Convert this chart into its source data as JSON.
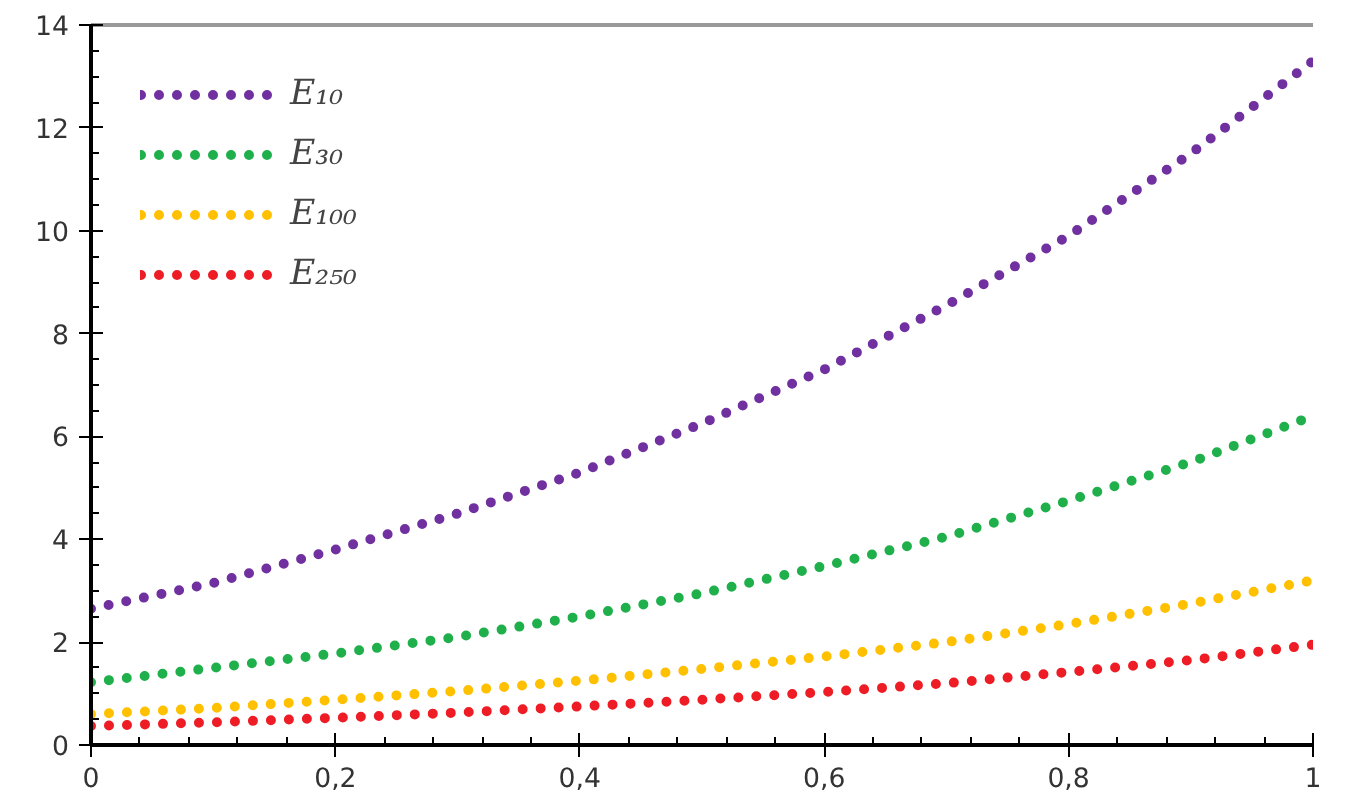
{
  "chart_data": {
    "type": "line",
    "x": [
      0,
      0.1,
      0.2,
      0.3,
      0.4,
      0.5,
      0.6,
      0.7,
      0.8,
      0.9,
      1
    ],
    "series": [
      {
        "name": "E₁₀",
        "color": "#7030a0",
        "values": [
          2.65,
          3.15,
          3.8,
          4.5,
          5.3,
          6.25,
          7.3,
          8.55,
          9.9,
          11.5,
          13.3
        ]
      },
      {
        "name": "E₃₀",
        "color": "#1fb04c",
        "values": [
          1.22,
          1.5,
          1.78,
          2.1,
          2.5,
          2.95,
          3.48,
          4.05,
          4.75,
          5.5,
          6.4
        ]
      },
      {
        "name": "E₁₀₀",
        "color": "#ffc000",
        "values": [
          0.6,
          0.72,
          0.88,
          1.05,
          1.25,
          1.48,
          1.72,
          2.0,
          2.35,
          2.75,
          3.2
        ]
      },
      {
        "name": "E₂₅₀",
        "color": "#ee1c24",
        "values": [
          0.37,
          0.44,
          0.53,
          0.63,
          0.75,
          0.88,
          1.03,
          1.2,
          1.42,
          1.65,
          1.95
        ]
      }
    ],
    "xlim": [
      0,
      1
    ],
    "xticks": [
      0,
      {
        "value": 0.2,
        "label": "0,2"
      },
      {
        "value": 0.4,
        "label": "0,4"
      },
      {
        "value": 0.6,
        "label": "0,6"
      },
      {
        "value": 0.8,
        "label": "0,8"
      },
      1
    ],
    "ylim": [
      0,
      14
    ],
    "yticks": [
      0,
      2,
      4,
      6,
      8,
      10,
      12,
      14
    ],
    "grid": false,
    "legend": "top left",
    "line_style": "dotted",
    "marker": "none"
  }
}
